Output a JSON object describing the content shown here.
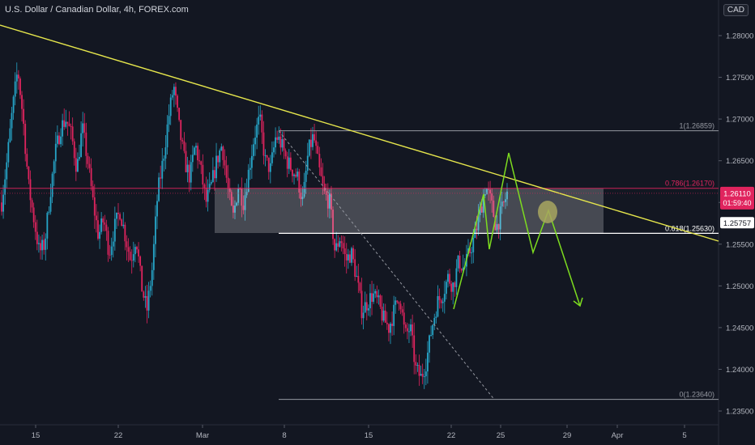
{
  "header": {
    "title": "U.S. Dollar / Canadian Dollar, 4h, FOREX.com",
    "currency": "CAD"
  },
  "chart_data": {
    "type": "candlestick",
    "y_axis": {
      "ticks": [
        "1.28000",
        "1.27500",
        "1.27000",
        "1.26500",
        "1.26000",
        "1.25500",
        "1.25000",
        "1.24500",
        "1.24000",
        "1.23500"
      ],
      "range": [
        1.233,
        1.2835
      ]
    },
    "x_axis": {
      "ticks": [
        "15",
        "22",
        "Mar",
        "8",
        "15",
        "22",
        "25",
        "29",
        "Apr",
        "5"
      ]
    },
    "price_labels": {
      "current_price": "1.26110",
      "countdown": "01:59:40",
      "marker_price": "1.25757"
    },
    "fibonacci": [
      {
        "label": "1(1.26859)",
        "value": 1.26859
      },
      {
        "label": "0.786(1.26170)",
        "value": 1.2617
      },
      {
        "label": "0.618(1.25630)",
        "value": 1.2563
      },
      {
        "label": "0(1.23640)",
        "value": 1.2364
      }
    ],
    "colors": {
      "background": "#131722",
      "bull": "#26a5c8",
      "bear": "#e0245e",
      "trendline": "#e6e64c",
      "projection": "#7ddc1f",
      "zone": "#ffffff",
      "fib_line": "#9598a1",
      "fib_red": "#e0245e"
    },
    "close_series": [
      1.26,
      1.265,
      1.271,
      1.276,
      1.27,
      1.262,
      1.258,
      1.254,
      1.255,
      1.261,
      1.266,
      1.269,
      1.27,
      1.268,
      1.264,
      1.269,
      1.265,
      1.26,
      1.256,
      1.258,
      1.254,
      1.257,
      1.259,
      1.256,
      1.253,
      1.256,
      1.25,
      1.247,
      1.252,
      1.261,
      1.265,
      1.27,
      1.274,
      1.269,
      1.265,
      1.263,
      1.267,
      1.264,
      1.26,
      1.262,
      1.265,
      1.267,
      1.262,
      1.258,
      1.262,
      1.26,
      1.264,
      1.268,
      1.27,
      1.265,
      1.264,
      1.268,
      1.267,
      1.265,
      1.264,
      1.263,
      1.26,
      1.266,
      1.268,
      1.264,
      1.261,
      1.26,
      1.254,
      1.256,
      1.253,
      1.254,
      1.251,
      1.247,
      1.248,
      1.249,
      1.248,
      1.246,
      1.245,
      1.247,
      1.249,
      1.244,
      1.245,
      1.24,
      1.239,
      1.241,
      1.245,
      1.248,
      1.249,
      1.251,
      1.25,
      1.253,
      1.252,
      1.254,
      1.256,
      1.259,
      1.262,
      1.26,
      1.257,
      1.259,
      1.2611
    ]
  }
}
